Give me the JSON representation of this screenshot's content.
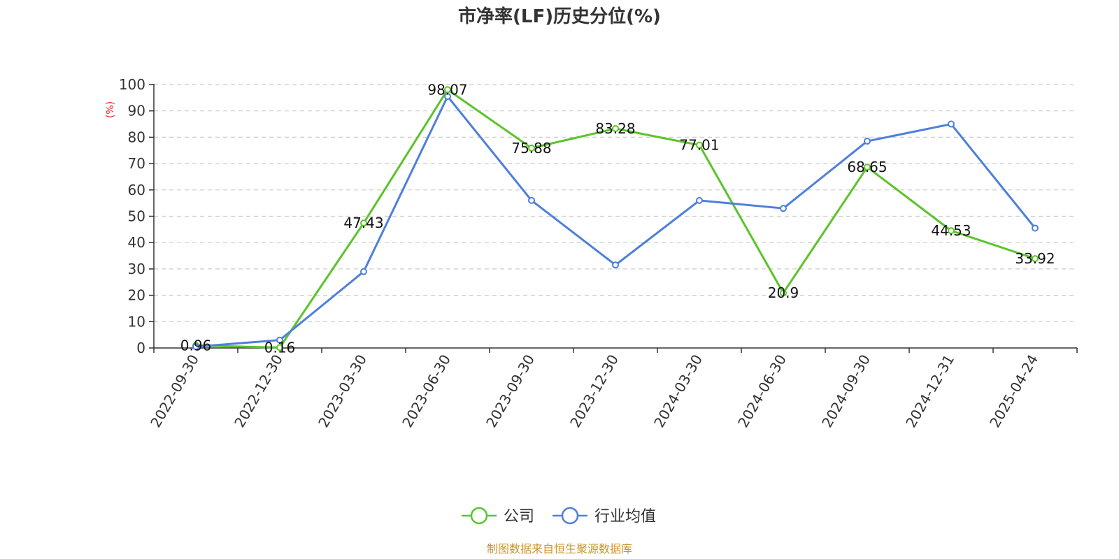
{
  "chart_data": {
    "type": "line",
    "title": "市净率(LF)历史分位(%)",
    "ylabel": "(%)",
    "xlabel": "",
    "categories": [
      "2022-09-30",
      "2022-12-30",
      "2023-03-30",
      "2023-06-30",
      "2023-09-30",
      "2023-12-30",
      "2024-03-30",
      "2024-06-30",
      "2024-09-30",
      "2024-12-31",
      "2025-04-24"
    ],
    "yticks": [
      "0",
      "10",
      "20",
      "30",
      "40",
      "50",
      "60",
      "70",
      "80",
      "90",
      "100"
    ],
    "ylim": [
      0,
      100
    ],
    "grid": true,
    "legend_position": "bottom",
    "series": [
      {
        "name": "公司",
        "color": "#5cc32b",
        "values": [
          0.96,
          0.16,
          47.43,
          98.07,
          75.88,
          83.28,
          77.01,
          20.9,
          68.65,
          44.53,
          33.92
        ],
        "labels": [
          "0.96",
          "0.16",
          "47.43",
          "98.07",
          "75.88",
          "83.28",
          "77.01",
          "20.9",
          "68.65",
          "44.53",
          "33.92"
        ]
      },
      {
        "name": "行业均值",
        "color": "#4e7fdc",
        "values": [
          0.5,
          3,
          29,
          95.5,
          56,
          31.5,
          56,
          53,
          78.5,
          85,
          45.5
        ]
      }
    ],
    "unit_color": "#e02020",
    "source": "制图数据来自恒生聚源数据库",
    "source_color": "#c8962a"
  }
}
